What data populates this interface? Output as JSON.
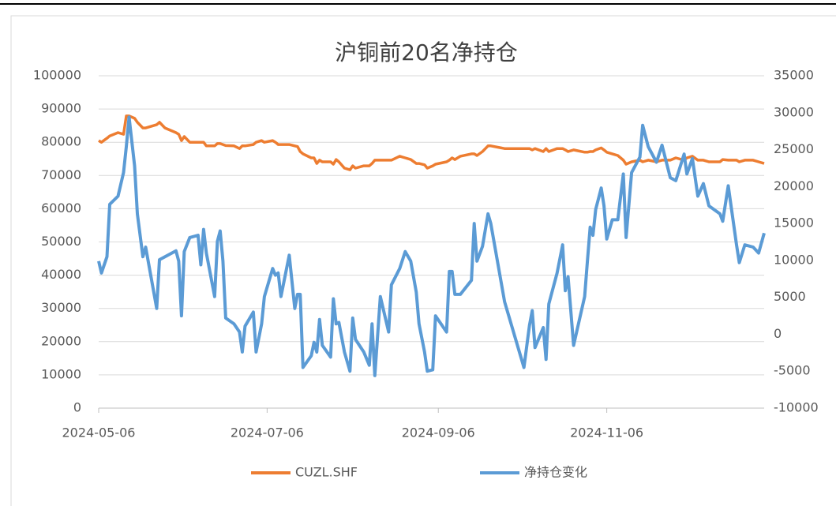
{
  "chart_data": {
    "type": "line",
    "title": "沪铜前20名净持仓",
    "x": [
      "2024-05-06",
      "2024-05-07",
      "2024-05-09",
      "2024-05-10",
      "2024-05-13",
      "2024-05-15",
      "2024-05-16",
      "2024-05-17",
      "2024-05-19",
      "2024-05-20",
      "2024-05-22",
      "2024-05-23",
      "2024-05-27",
      "2024-05-28",
      "2024-05-30",
      "2024-06-03",
      "2024-06-04",
      "2024-06-05",
      "2024-06-06",
      "2024-06-08",
      "2024-06-11",
      "2024-06-12",
      "2024-06-13",
      "2024-06-14",
      "2024-06-17",
      "2024-06-18",
      "2024-06-19",
      "2024-06-20",
      "2024-06-21",
      "2024-06-24",
      "2024-06-26",
      "2024-06-27",
      "2024-06-28",
      "2024-07-01",
      "2024-07-02",
      "2024-07-04",
      "2024-07-05",
      "2024-07-08",
      "2024-07-09",
      "2024-07-10",
      "2024-07-11",
      "2024-07-14",
      "2024-07-16",
      "2024-07-17",
      "2024-07-18",
      "2024-07-19",
      "2024-07-22",
      "2024-07-23",
      "2024-07-24",
      "2024-07-25",
      "2024-07-26",
      "2024-07-29",
      "2024-07-30",
      "2024-07-31",
      "2024-08-01",
      "2024-08-03",
      "2024-08-05",
      "2024-08-06",
      "2024-08-07",
      "2024-08-10",
      "2024-08-12",
      "2024-08-13",
      "2024-08-14",
      "2024-08-16",
      "2024-08-19",
      "2024-08-20",
      "2024-08-23",
      "2024-08-25",
      "2024-08-27",
      "2024-08-29",
      "2024-08-30",
      "2024-09-01",
      "2024-09-02",
      "2024-09-04",
      "2024-09-05",
      "2024-09-09",
      "2024-09-10",
      "2024-09-11",
      "2024-09-12",
      "2024-09-14",
      "2024-09-18",
      "2024-09-19",
      "2024-09-20",
      "2024-09-22",
      "2024-09-24",
      "2024-09-25",
      "2024-09-30",
      "2024-10-07",
      "2024-10-09",
      "2024-10-10",
      "2024-10-11",
      "2024-10-14",
      "2024-10-15",
      "2024-10-16",
      "2024-10-19",
      "2024-10-21",
      "2024-10-22",
      "2024-10-23",
      "2024-10-25",
      "2024-10-29",
      "2024-10-30",
      "2024-10-31",
      "2024-11-01",
      "2024-11-02",
      "2024-11-04",
      "2024-11-05",
      "2024-11-06",
      "2024-11-08",
      "2024-11-10",
      "2024-11-12",
      "2024-11-13",
      "2024-11-15",
      "2024-11-18",
      "2024-11-19",
      "2024-11-21",
      "2024-11-24",
      "2024-11-26",
      "2024-11-29",
      "2024-12-01",
      "2024-12-04",
      "2024-12-05",
      "2024-12-07",
      "2024-12-09",
      "2024-12-11",
      "2024-12-13",
      "2024-12-17",
      "2024-12-18",
      "2024-12-20",
      "2024-12-23",
      "2024-12-24",
      "2024-12-26",
      "2024-12-29",
      "2024-12-31",
      "2025-01-02"
    ],
    "xlim": [
      "2024-05-06",
      "2025-01-02"
    ],
    "xticks": [
      "2024-05-06",
      "2024-07-06",
      "2024-09-06",
      "2024-11-06"
    ],
    "ylim": [
      0,
      100000
    ],
    "yticks": [
      0,
      10000,
      20000,
      30000,
      40000,
      50000,
      60000,
      70000,
      80000,
      90000,
      100000
    ],
    "y2lim": [
      -10000,
      35000
    ],
    "y2ticks": [
      -10000,
      -5000,
      0,
      5000,
      10000,
      15000,
      20000,
      25000,
      30000,
      35000
    ],
    "grid": true,
    "legend": "bottom",
    "series": [
      {
        "name": "CUZL.SHF",
        "color": "#ED7D31",
        "values": [
          80500,
          80000,
          81200,
          81900,
          82900,
          82400,
          87900,
          87900,
          87200,
          86000,
          84300,
          84300,
          85300,
          86000,
          84300,
          82900,
          82400,
          80500,
          81700,
          80000,
          80000,
          80000,
          80000,
          78900,
          78900,
          79600,
          79600,
          79300,
          79000,
          78900,
          78100,
          78900,
          78900,
          79300,
          80000,
          80500,
          80000,
          80500,
          80000,
          79300,
          79300,
          79300,
          78900,
          78700,
          77200,
          76500,
          75300,
          75300,
          73600,
          74600,
          74100,
          74100,
          73400,
          74800,
          74100,
          72200,
          71700,
          72900,
          72200,
          72900,
          72900,
          73600,
          74600,
          74600,
          74600,
          74600,
          75800,
          75300,
          74800,
          73600,
          73600,
          73200,
          72200,
          72900,
          73400,
          74100,
          74600,
          75300,
          74800,
          75800,
          76500,
          76500,
          76000,
          77200,
          78900,
          78900,
          78100,
          78100,
          78100,
          77700,
          78100,
          77200,
          78100,
          77200,
          78100,
          78100,
          77700,
          77200,
          77700,
          77000,
          77000,
          77200,
          77200,
          77700,
          78300,
          77700,
          77000,
          76500,
          76000,
          74600,
          73400,
          74100,
          74600,
          74100,
          74600,
          74100,
          74600,
          74600,
          75300,
          74600,
          75300,
          75800,
          74600,
          74600,
          74100,
          74100,
          74800,
          74600,
          74600,
          74100,
          74600,
          74600,
          74100,
          73600
        ]
      },
      {
        "name": "净持仓变化",
        "color": "#5B9BD5",
        "axis": "y2",
        "values": [
          9900,
          8300,
          10500,
          17600,
          18700,
          21900,
          25400,
          29400,
          22800,
          16300,
          10500,
          11800,
          3500,
          10100,
          10500,
          11300,
          9900,
          2500,
          11200,
          13100,
          13400,
          9400,
          14200,
          11000,
          5100,
          12600,
          14000,
          9900,
          2200,
          1400,
          300,
          -2400,
          1100,
          3000,
          -2400,
          1400,
          5100,
          8900,
          8000,
          8300,
          5100,
          10700,
          3500,
          5400,
          5400,
          -4500,
          -2900,
          -1100,
          -2400,
          2000,
          -1500,
          -3100,
          4800,
          1400,
          1600,
          -2400,
          -5000,
          2200,
          -700,
          -2400,
          -4200,
          1400,
          -5600,
          5100,
          300,
          6700,
          8900,
          11200,
          9900,
          5700,
          1400,
          -2400,
          -5000,
          -4800,
          2500,
          300,
          8500,
          8500,
          5400,
          5400,
          7300,
          15000,
          9900,
          11900,
          16300,
          15000,
          4400,
          -4500,
          1200,
          3200,
          -1800,
          900,
          -3400,
          4100,
          8300,
          12100,
          5900,
          7800,
          -1500,
          5100,
          9900,
          14500,
          13400,
          16900,
          19800,
          17400,
          12900,
          15500,
          15500,
          21700,
          13100,
          21900,
          24000,
          28300,
          25400,
          23300,
          25600,
          21200,
          20800,
          24400,
          21700,
          23800,
          18700,
          20400,
          17400,
          16300,
          15300,
          20100,
          12100,
          9700,
          12100,
          11800,
          11000,
          13700
        ]
      }
    ]
  }
}
